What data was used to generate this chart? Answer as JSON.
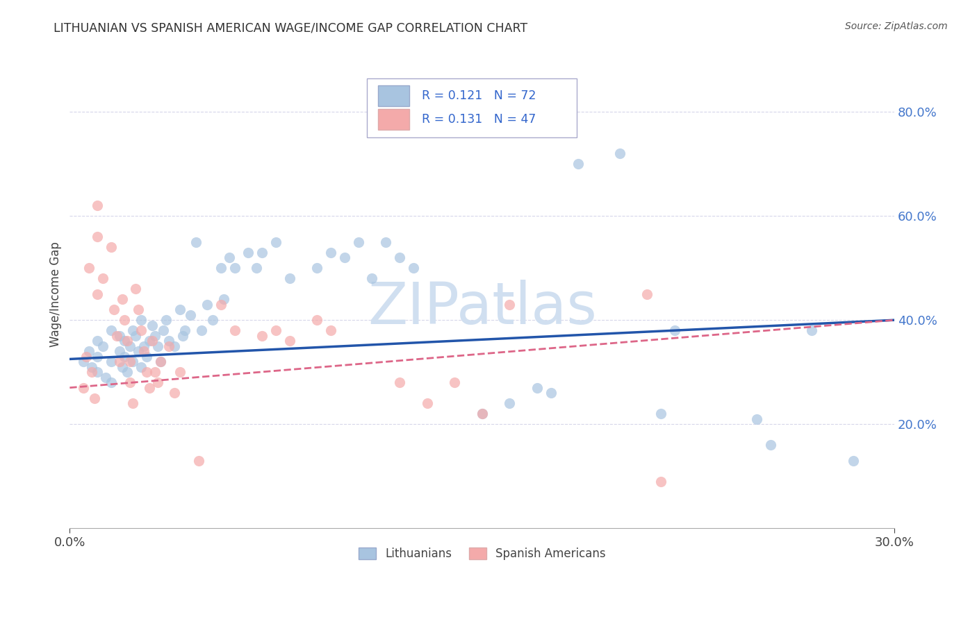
{
  "title": "LITHUANIAN VS SPANISH AMERICAN WAGE/INCOME GAP CORRELATION CHART",
  "source": "Source: ZipAtlas.com",
  "ylabel": "Wage/Income Gap",
  "xlim": [
    0.0,
    0.3
  ],
  "ylim": [
    0.0,
    0.9
  ],
  "ytick_vals": [
    0.2,
    0.4,
    0.6,
    0.8
  ],
  "ytick_labels": [
    "20.0%",
    "40.0%",
    "60.0%",
    "80.0%"
  ],
  "xtick_vals": [
    0.0,
    0.3
  ],
  "xtick_labels": [
    "0.0%",
    "30.0%"
  ],
  "r_blue": 0.121,
  "n_blue": 72,
  "r_pink": 0.131,
  "n_pink": 47,
  "blue_color": "#A8C4E0",
  "pink_color": "#F4AAAA",
  "blue_line_color": "#2255AA",
  "pink_line_color": "#DD6688",
  "legend_label_blue": "Lithuanians",
  "legend_label_pink": "Spanish Americans",
  "watermark": "ZIPatlas",
  "blue_scatter": [
    [
      0.005,
      0.32
    ],
    [
      0.007,
      0.34
    ],
    [
      0.008,
      0.31
    ],
    [
      0.01,
      0.36
    ],
    [
      0.01,
      0.33
    ],
    [
      0.01,
      0.3
    ],
    [
      0.012,
      0.35
    ],
    [
      0.013,
      0.29
    ],
    [
      0.015,
      0.38
    ],
    [
      0.015,
      0.32
    ],
    [
      0.015,
      0.28
    ],
    [
      0.018,
      0.34
    ],
    [
      0.018,
      0.37
    ],
    [
      0.019,
      0.31
    ],
    [
      0.02,
      0.36
    ],
    [
      0.02,
      0.33
    ],
    [
      0.021,
      0.3
    ],
    [
      0.022,
      0.35
    ],
    [
      0.023,
      0.38
    ],
    [
      0.023,
      0.32
    ],
    [
      0.024,
      0.37
    ],
    [
      0.025,
      0.34
    ],
    [
      0.026,
      0.31
    ],
    [
      0.026,
      0.4
    ],
    [
      0.027,
      0.35
    ],
    [
      0.028,
      0.33
    ],
    [
      0.029,
      0.36
    ],
    [
      0.03,
      0.39
    ],
    [
      0.031,
      0.37
    ],
    [
      0.032,
      0.35
    ],
    [
      0.033,
      0.32
    ],
    [
      0.034,
      0.38
    ],
    [
      0.035,
      0.4
    ],
    [
      0.036,
      0.36
    ],
    [
      0.038,
      0.35
    ],
    [
      0.04,
      0.42
    ],
    [
      0.041,
      0.37
    ],
    [
      0.042,
      0.38
    ],
    [
      0.044,
      0.41
    ],
    [
      0.046,
      0.55
    ],
    [
      0.048,
      0.38
    ],
    [
      0.05,
      0.43
    ],
    [
      0.052,
      0.4
    ],
    [
      0.055,
      0.5
    ],
    [
      0.056,
      0.44
    ],
    [
      0.058,
      0.52
    ],
    [
      0.06,
      0.5
    ],
    [
      0.065,
      0.53
    ],
    [
      0.068,
      0.5
    ],
    [
      0.07,
      0.53
    ],
    [
      0.075,
      0.55
    ],
    [
      0.08,
      0.48
    ],
    [
      0.09,
      0.5
    ],
    [
      0.095,
      0.53
    ],
    [
      0.1,
      0.52
    ],
    [
      0.105,
      0.55
    ],
    [
      0.11,
      0.48
    ],
    [
      0.115,
      0.55
    ],
    [
      0.12,
      0.52
    ],
    [
      0.125,
      0.5
    ],
    [
      0.15,
      0.22
    ],
    [
      0.16,
      0.24
    ],
    [
      0.17,
      0.27
    ],
    [
      0.175,
      0.26
    ],
    [
      0.185,
      0.7
    ],
    [
      0.2,
      0.72
    ],
    [
      0.215,
      0.22
    ],
    [
      0.22,
      0.38
    ],
    [
      0.25,
      0.21
    ],
    [
      0.255,
      0.16
    ],
    [
      0.27,
      0.38
    ],
    [
      0.285,
      0.13
    ]
  ],
  "pink_scatter": [
    [
      0.005,
      0.27
    ],
    [
      0.006,
      0.33
    ],
    [
      0.007,
      0.5
    ],
    [
      0.008,
      0.3
    ],
    [
      0.009,
      0.25
    ],
    [
      0.01,
      0.56
    ],
    [
      0.01,
      0.62
    ],
    [
      0.01,
      0.45
    ],
    [
      0.012,
      0.48
    ],
    [
      0.015,
      0.54
    ],
    [
      0.016,
      0.42
    ],
    [
      0.017,
      0.37
    ],
    [
      0.018,
      0.32
    ],
    [
      0.019,
      0.44
    ],
    [
      0.02,
      0.4
    ],
    [
      0.021,
      0.36
    ],
    [
      0.022,
      0.32
    ],
    [
      0.022,
      0.28
    ],
    [
      0.023,
      0.24
    ],
    [
      0.024,
      0.46
    ],
    [
      0.025,
      0.42
    ],
    [
      0.026,
      0.38
    ],
    [
      0.027,
      0.34
    ],
    [
      0.028,
      0.3
    ],
    [
      0.029,
      0.27
    ],
    [
      0.03,
      0.36
    ],
    [
      0.031,
      0.3
    ],
    [
      0.032,
      0.28
    ],
    [
      0.033,
      0.32
    ],
    [
      0.036,
      0.35
    ],
    [
      0.038,
      0.26
    ],
    [
      0.04,
      0.3
    ],
    [
      0.047,
      0.13
    ],
    [
      0.055,
      0.43
    ],
    [
      0.06,
      0.38
    ],
    [
      0.07,
      0.37
    ],
    [
      0.075,
      0.38
    ],
    [
      0.08,
      0.36
    ],
    [
      0.09,
      0.4
    ],
    [
      0.095,
      0.38
    ],
    [
      0.12,
      0.28
    ],
    [
      0.13,
      0.24
    ],
    [
      0.14,
      0.28
    ],
    [
      0.15,
      0.22
    ],
    [
      0.16,
      0.43
    ],
    [
      0.21,
      0.45
    ],
    [
      0.215,
      0.09
    ]
  ]
}
